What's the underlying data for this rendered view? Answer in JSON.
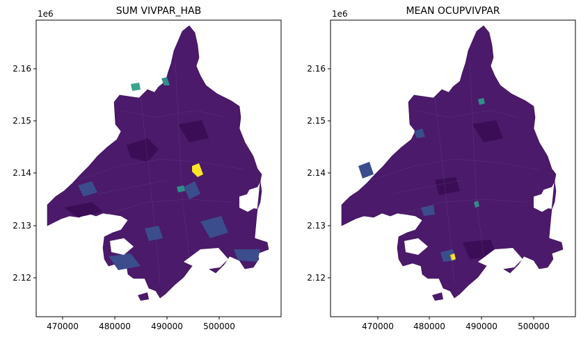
{
  "panels": [
    {
      "title": "SUM VIVPAR_HAB",
      "offset_text": "1e6",
      "xticks": [
        "470000",
        "480000",
        "490000",
        "500000"
      ],
      "yticks": [
        "2.12",
        "2.13",
        "2.14",
        "2.15",
        "2.16"
      ],
      "colors": {
        "base": "#4b1a6a",
        "dark": "#3a0d56",
        "mid": "#3b4d8c",
        "teal": "#2f8f8a",
        "green": "#3aa68a",
        "highlight": "#fde725"
      }
    },
    {
      "title": "MEAN OCUPVIVPAR",
      "offset_text": "1e6",
      "xticks": [
        "470000",
        "480000",
        "490000",
        "500000"
      ],
      "yticks": [
        "2.12",
        "2.13",
        "2.14",
        "2.15",
        "2.16"
      ],
      "colors": {
        "base": "#4b1a6a",
        "dark": "#3a0d56",
        "mid": "#3b4d8c",
        "teal": "#2f8f8a",
        "green": "#3aa68a",
        "highlight": "#fde725"
      }
    }
  ]
}
